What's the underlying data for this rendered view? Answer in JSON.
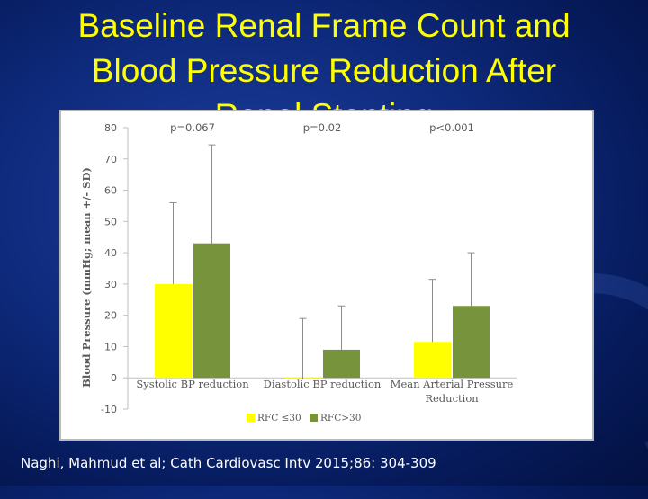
{
  "slide": {
    "title_line1": "Baseline Renal Frame Count and",
    "title_line2": "Blood Pressure Reduction After",
    "title_line3": "Renal Stenting",
    "citation": "Naghi, Mahmud et al; Cath Cardiovasc Intv 2015;86: 304-309"
  },
  "chart_data": {
    "type": "bar",
    "title": "",
    "xlabel": "",
    "ylabel": "Blood Pressure (mmHg; mean +/- SD)",
    "ylim": [
      -10,
      80
    ],
    "yticks": [
      -10,
      0,
      10,
      20,
      30,
      40,
      50,
      60,
      70,
      80
    ],
    "grid": false,
    "legend_position": "bottom",
    "categories": [
      "Systolic BP reduction",
      "Diastolic BP reduction",
      "Mean Arterial Pressure Reduction"
    ],
    "category_lines": [
      [
        "Systolic BP reduction"
      ],
      [
        "Diastolic BP reduction"
      ],
      [
        "Mean Arterial Pressure",
        "Reduction"
      ]
    ],
    "p_values": [
      "p=0.067",
      "p=0.02",
      "p<0.001"
    ],
    "series": [
      {
        "name": "RFC ≤30",
        "color": "#ffff00",
        "values": [
          30,
          -0.5,
          11.5
        ],
        "sd": [
          26,
          19.5,
          20
        ]
      },
      {
        "name": "RFC>30",
        "color": "#77933c",
        "values": [
          43,
          9,
          23
        ],
        "sd": [
          31.5,
          14,
          17
        ]
      }
    ]
  }
}
